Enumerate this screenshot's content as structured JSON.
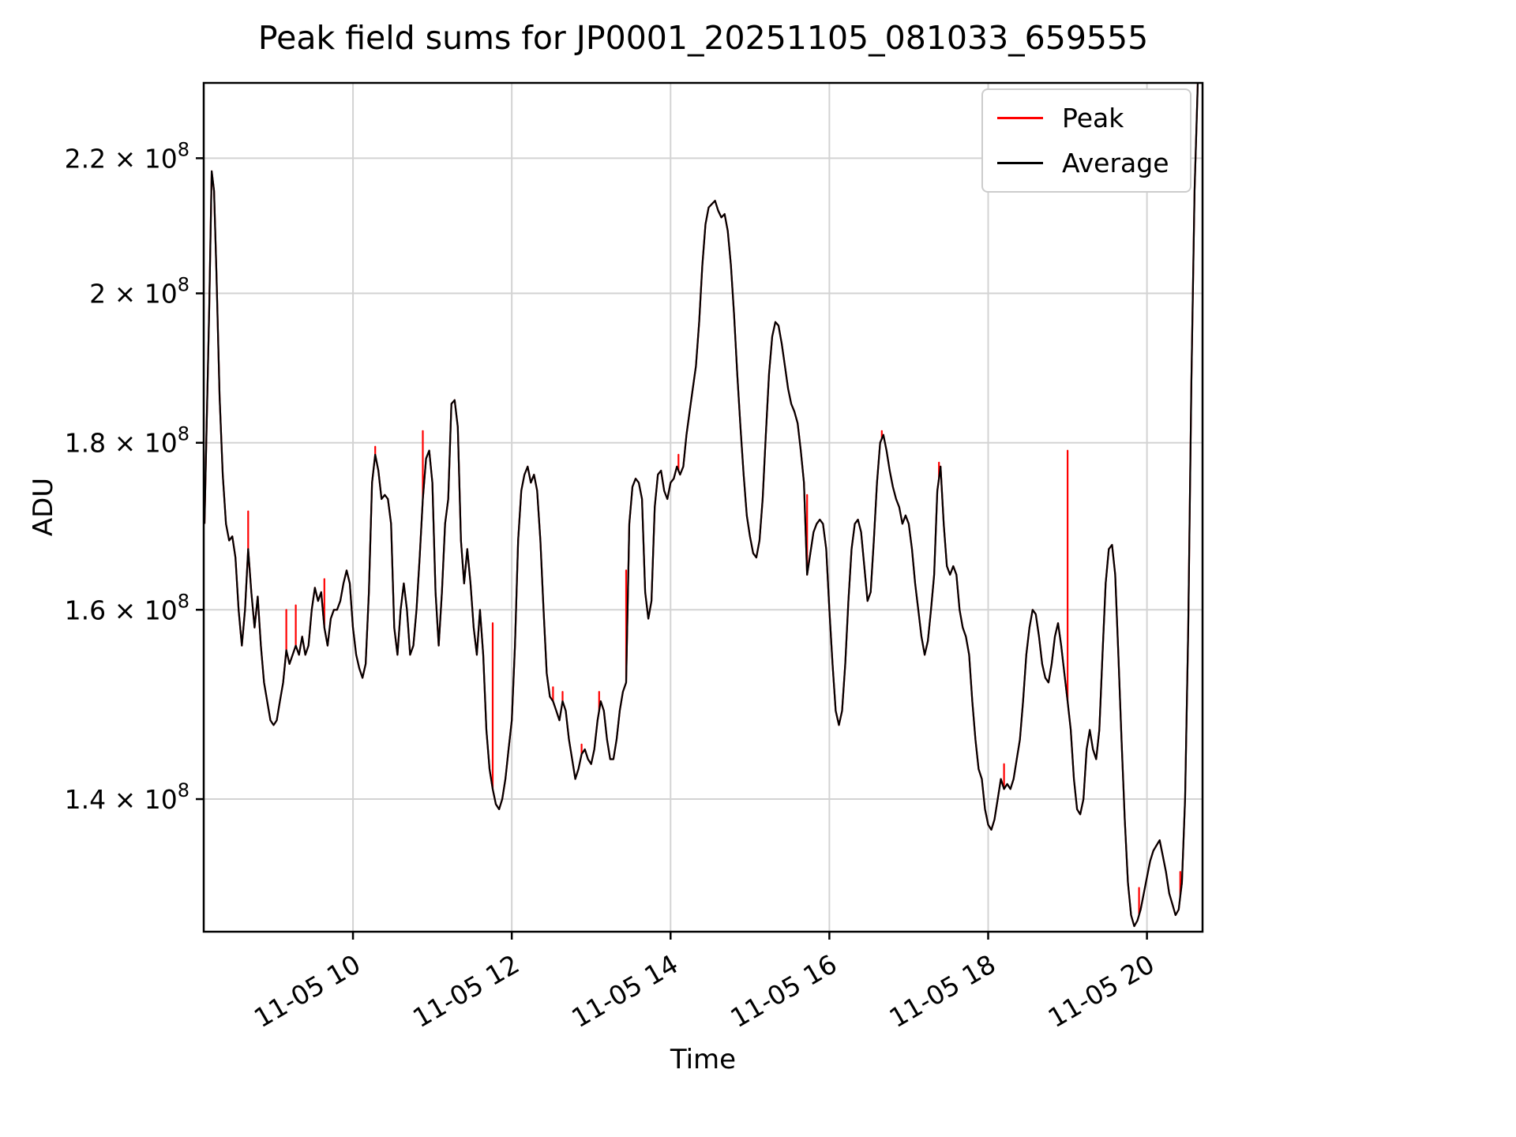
{
  "chart": {
    "title": "Peak field sums for JP0001_20251105_081033_659555",
    "xlabel": "Time",
    "ylabel": "ADU",
    "legend": [
      {
        "label": "Peak",
        "color": "#ff0000"
      },
      {
        "label": "Average",
        "color": "#000000"
      }
    ]
  },
  "chart_data": {
    "type": "line",
    "title": "Peak field sums for JP0001_20251105_081033_659555",
    "xlabel": "Time",
    "ylabel": "ADU",
    "yscale": "log",
    "grid": true,
    "grid_color": "#d3d3d3",
    "background": "#ffffff",
    "legend_position": "upper right",
    "x_unit_note": "hours of day on 2025-11-05",
    "y_values_unit": "ADU x 1e8",
    "xlim": [
      8.12,
      20.7
    ],
    "ylim": [
      1.275,
      2.32
    ],
    "x_ticks": [
      {
        "v": 10,
        "label": "11-05 10"
      },
      {
        "v": 12,
        "label": "11-05 12"
      },
      {
        "v": 14,
        "label": "11-05 14"
      },
      {
        "v": 16,
        "label": "11-05 16"
      },
      {
        "v": 18,
        "label": "11-05 18"
      },
      {
        "v": 20,
        "label": "11-05 20"
      }
    ],
    "y_ticks": [
      {
        "v": 1.4,
        "mantissa": "1.4"
      },
      {
        "v": 1.6,
        "mantissa": "1.6"
      },
      {
        "v": 1.8,
        "mantissa": "1.8"
      },
      {
        "v": 2.0,
        "mantissa": "2"
      },
      {
        "v": 2.2,
        "mantissa": "2.2"
      }
    ],
    "y_tick_suffix": " × 10",
    "y_tick_exponent": "8",
    "series": [
      {
        "name": "Peak",
        "color": "#ff0000",
        "derived_from": "Average plus spikes"
      },
      {
        "name": "Average",
        "color": "#000000"
      }
    ],
    "average_points": [
      [
        8.13,
        1.7
      ],
      [
        8.19,
        1.98
      ],
      [
        8.22,
        2.18
      ],
      [
        8.25,
        2.15
      ],
      [
        8.28,
        2.03
      ],
      [
        8.32,
        1.86
      ],
      [
        8.36,
        1.76
      ],
      [
        8.4,
        1.7
      ],
      [
        8.44,
        1.68
      ],
      [
        8.48,
        1.685
      ],
      [
        8.52,
        1.66
      ],
      [
        8.56,
        1.6
      ],
      [
        8.6,
        1.56
      ],
      [
        8.64,
        1.6
      ],
      [
        8.68,
        1.67
      ],
      [
        8.72,
        1.62
      ],
      [
        8.76,
        1.58
      ],
      [
        8.8,
        1.615
      ],
      [
        8.84,
        1.56
      ],
      [
        8.88,
        1.52
      ],
      [
        8.92,
        1.5
      ],
      [
        8.96,
        1.48
      ],
      [
        9.0,
        1.475
      ],
      [
        9.04,
        1.48
      ],
      [
        9.08,
        1.5
      ],
      [
        9.12,
        1.52
      ],
      [
        9.16,
        1.555
      ],
      [
        9.2,
        1.54
      ],
      [
        9.24,
        1.55
      ],
      [
        9.28,
        1.56
      ],
      [
        9.32,
        1.55
      ],
      [
        9.36,
        1.57
      ],
      [
        9.4,
        1.55
      ],
      [
        9.44,
        1.56
      ],
      [
        9.48,
        1.6
      ],
      [
        9.52,
        1.625
      ],
      [
        9.56,
        1.61
      ],
      [
        9.6,
        1.62
      ],
      [
        9.64,
        1.58
      ],
      [
        9.68,
        1.56
      ],
      [
        9.72,
        1.59
      ],
      [
        9.76,
        1.6
      ],
      [
        9.8,
        1.6
      ],
      [
        9.84,
        1.61
      ],
      [
        9.88,
        1.63
      ],
      [
        9.92,
        1.645
      ],
      [
        9.96,
        1.63
      ],
      [
        10.0,
        1.58
      ],
      [
        10.04,
        1.55
      ],
      [
        10.08,
        1.535
      ],
      [
        10.12,
        1.525
      ],
      [
        10.16,
        1.54
      ],
      [
        10.2,
        1.62
      ],
      [
        10.24,
        1.75
      ],
      [
        10.28,
        1.785
      ],
      [
        10.32,
        1.765
      ],
      [
        10.36,
        1.73
      ],
      [
        10.4,
        1.735
      ],
      [
        10.44,
        1.73
      ],
      [
        10.48,
        1.7
      ],
      [
        10.52,
        1.58
      ],
      [
        10.56,
        1.55
      ],
      [
        10.6,
        1.6
      ],
      [
        10.64,
        1.63
      ],
      [
        10.68,
        1.6
      ],
      [
        10.72,
        1.55
      ],
      [
        10.76,
        1.56
      ],
      [
        10.8,
        1.6
      ],
      [
        10.84,
        1.66
      ],
      [
        10.88,
        1.73
      ],
      [
        10.92,
        1.78
      ],
      [
        10.96,
        1.79
      ],
      [
        11.0,
        1.75
      ],
      [
        11.04,
        1.62
      ],
      [
        11.08,
        1.56
      ],
      [
        11.12,
        1.62
      ],
      [
        11.16,
        1.7
      ],
      [
        11.2,
        1.73
      ],
      [
        11.24,
        1.85
      ],
      [
        11.28,
        1.855
      ],
      [
        11.32,
        1.82
      ],
      [
        11.36,
        1.68
      ],
      [
        11.4,
        1.63
      ],
      [
        11.44,
        1.67
      ],
      [
        11.48,
        1.63
      ],
      [
        11.52,
        1.58
      ],
      [
        11.56,
        1.55
      ],
      [
        11.6,
        1.6
      ],
      [
        11.64,
        1.55
      ],
      [
        11.68,
        1.47
      ],
      [
        11.72,
        1.43
      ],
      [
        11.76,
        1.41
      ],
      [
        11.8,
        1.395
      ],
      [
        11.84,
        1.39
      ],
      [
        11.88,
        1.4
      ],
      [
        11.92,
        1.42
      ],
      [
        11.96,
        1.45
      ],
      [
        12.0,
        1.48
      ],
      [
        12.04,
        1.56
      ],
      [
        12.08,
        1.68
      ],
      [
        12.12,
        1.74
      ],
      [
        12.16,
        1.76
      ],
      [
        12.2,
        1.77
      ],
      [
        12.24,
        1.75
      ],
      [
        12.28,
        1.76
      ],
      [
        12.32,
        1.74
      ],
      [
        12.36,
        1.68
      ],
      [
        12.4,
        1.6
      ],
      [
        12.44,
        1.53
      ],
      [
        12.48,
        1.505
      ],
      [
        12.52,
        1.5
      ],
      [
        12.56,
        1.49
      ],
      [
        12.6,
        1.48
      ],
      [
        12.64,
        1.5
      ],
      [
        12.68,
        1.49
      ],
      [
        12.72,
        1.46
      ],
      [
        12.76,
        1.44
      ],
      [
        12.8,
        1.42
      ],
      [
        12.84,
        1.43
      ],
      [
        12.88,
        1.445
      ],
      [
        12.92,
        1.45
      ],
      [
        12.96,
        1.44
      ],
      [
        13.0,
        1.435
      ],
      [
        13.04,
        1.45
      ],
      [
        13.08,
        1.48
      ],
      [
        13.12,
        1.5
      ],
      [
        13.16,
        1.49
      ],
      [
        13.2,
        1.46
      ],
      [
        13.24,
        1.44
      ],
      [
        13.28,
        1.44
      ],
      [
        13.32,
        1.46
      ],
      [
        13.36,
        1.49
      ],
      [
        13.4,
        1.51
      ],
      [
        13.44,
        1.52
      ],
      [
        13.48,
        1.7
      ],
      [
        13.52,
        1.745
      ],
      [
        13.56,
        1.755
      ],
      [
        13.6,
        1.75
      ],
      [
        13.64,
        1.73
      ],
      [
        13.68,
        1.62
      ],
      [
        13.72,
        1.59
      ],
      [
        13.76,
        1.61
      ],
      [
        13.8,
        1.72
      ],
      [
        13.84,
        1.76
      ],
      [
        13.88,
        1.765
      ],
      [
        13.92,
        1.74
      ],
      [
        13.96,
        1.73
      ],
      [
        14.0,
        1.75
      ],
      [
        14.04,
        1.755
      ],
      [
        14.08,
        1.77
      ],
      [
        14.12,
        1.76
      ],
      [
        14.16,
        1.77
      ],
      [
        14.2,
        1.81
      ],
      [
        14.24,
        1.84
      ],
      [
        14.28,
        1.87
      ],
      [
        14.32,
        1.9
      ],
      [
        14.36,
        1.96
      ],
      [
        14.4,
        2.04
      ],
      [
        14.44,
        2.1
      ],
      [
        14.48,
        2.125
      ],
      [
        14.52,
        2.13
      ],
      [
        14.56,
        2.135
      ],
      [
        14.6,
        2.12
      ],
      [
        14.64,
        2.11
      ],
      [
        14.68,
        2.115
      ],
      [
        14.72,
        2.09
      ],
      [
        14.76,
        2.04
      ],
      [
        14.8,
        1.97
      ],
      [
        14.84,
        1.89
      ],
      [
        14.88,
        1.82
      ],
      [
        14.92,
        1.76
      ],
      [
        14.96,
        1.71
      ],
      [
        15.0,
        1.685
      ],
      [
        15.04,
        1.665
      ],
      [
        15.08,
        1.66
      ],
      [
        15.12,
        1.68
      ],
      [
        15.16,
        1.73
      ],
      [
        15.2,
        1.81
      ],
      [
        15.24,
        1.89
      ],
      [
        15.28,
        1.94
      ],
      [
        15.32,
        1.96
      ],
      [
        15.36,
        1.955
      ],
      [
        15.4,
        1.93
      ],
      [
        15.44,
        1.9
      ],
      [
        15.48,
        1.87
      ],
      [
        15.52,
        1.85
      ],
      [
        15.56,
        1.84
      ],
      [
        15.6,
        1.825
      ],
      [
        15.64,
        1.79
      ],
      [
        15.68,
        1.75
      ],
      [
        15.72,
        1.64
      ],
      [
        15.76,
        1.665
      ],
      [
        15.8,
        1.69
      ],
      [
        15.84,
        1.7
      ],
      [
        15.88,
        1.705
      ],
      [
        15.92,
        1.7
      ],
      [
        15.96,
        1.67
      ],
      [
        16.0,
        1.6
      ],
      [
        16.04,
        1.54
      ],
      [
        16.08,
        1.49
      ],
      [
        16.12,
        1.475
      ],
      [
        16.16,
        1.49
      ],
      [
        16.2,
        1.54
      ],
      [
        16.24,
        1.61
      ],
      [
        16.28,
        1.67
      ],
      [
        16.32,
        1.7
      ],
      [
        16.36,
        1.705
      ],
      [
        16.4,
        1.69
      ],
      [
        16.44,
        1.65
      ],
      [
        16.48,
        1.61
      ],
      [
        16.52,
        1.62
      ],
      [
        16.56,
        1.68
      ],
      [
        16.6,
        1.75
      ],
      [
        16.64,
        1.8
      ],
      [
        16.68,
        1.81
      ],
      [
        16.72,
        1.79
      ],
      [
        16.76,
        1.765
      ],
      [
        16.8,
        1.745
      ],
      [
        16.84,
        1.73
      ],
      [
        16.88,
        1.72
      ],
      [
        16.92,
        1.7
      ],
      [
        16.96,
        1.71
      ],
      [
        17.0,
        1.7
      ],
      [
        17.04,
        1.67
      ],
      [
        17.08,
        1.63
      ],
      [
        17.12,
        1.6
      ],
      [
        17.16,
        1.57
      ],
      [
        17.2,
        1.55
      ],
      [
        17.24,
        1.565
      ],
      [
        17.28,
        1.6
      ],
      [
        17.32,
        1.64
      ],
      [
        17.36,
        1.74
      ],
      [
        17.4,
        1.77
      ],
      [
        17.44,
        1.7
      ],
      [
        17.48,
        1.65
      ],
      [
        17.52,
        1.64
      ],
      [
        17.56,
        1.65
      ],
      [
        17.6,
        1.64
      ],
      [
        17.64,
        1.6
      ],
      [
        17.68,
        1.58
      ],
      [
        17.72,
        1.57
      ],
      [
        17.76,
        1.55
      ],
      [
        17.8,
        1.5
      ],
      [
        17.84,
        1.46
      ],
      [
        17.88,
        1.43
      ],
      [
        17.92,
        1.42
      ],
      [
        17.96,
        1.39
      ],
      [
        18.0,
        1.375
      ],
      [
        18.04,
        1.37
      ],
      [
        18.08,
        1.38
      ],
      [
        18.12,
        1.4
      ],
      [
        18.16,
        1.42
      ],
      [
        18.2,
        1.41
      ],
      [
        18.24,
        1.415
      ],
      [
        18.28,
        1.41
      ],
      [
        18.32,
        1.42
      ],
      [
        18.36,
        1.44
      ],
      [
        18.4,
        1.46
      ],
      [
        18.44,
        1.5
      ],
      [
        18.48,
        1.55
      ],
      [
        18.52,
        1.58
      ],
      [
        18.56,
        1.6
      ],
      [
        18.6,
        1.595
      ],
      [
        18.64,
        1.57
      ],
      [
        18.68,
        1.54
      ],
      [
        18.72,
        1.525
      ],
      [
        18.76,
        1.52
      ],
      [
        18.8,
        1.54
      ],
      [
        18.84,
        1.57
      ],
      [
        18.88,
        1.585
      ],
      [
        18.92,
        1.56
      ],
      [
        18.96,
        1.53
      ],
      [
        19.0,
        1.5
      ],
      [
        19.04,
        1.47
      ],
      [
        19.08,
        1.42
      ],
      [
        19.12,
        1.39
      ],
      [
        19.16,
        1.385
      ],
      [
        19.2,
        1.4
      ],
      [
        19.24,
        1.45
      ],
      [
        19.28,
        1.47
      ],
      [
        19.32,
        1.45
      ],
      [
        19.36,
        1.44
      ],
      [
        19.4,
        1.47
      ],
      [
        19.44,
        1.55
      ],
      [
        19.48,
        1.63
      ],
      [
        19.52,
        1.67
      ],
      [
        19.56,
        1.675
      ],
      [
        19.6,
        1.64
      ],
      [
        19.64,
        1.55
      ],
      [
        19.68,
        1.46
      ],
      [
        19.72,
        1.38
      ],
      [
        19.76,
        1.32
      ],
      [
        19.8,
        1.29
      ],
      [
        19.84,
        1.28
      ],
      [
        19.88,
        1.285
      ],
      [
        19.92,
        1.295
      ],
      [
        19.96,
        1.31
      ],
      [
        20.0,
        1.325
      ],
      [
        20.04,
        1.34
      ],
      [
        20.08,
        1.35
      ],
      [
        20.12,
        1.355
      ],
      [
        20.16,
        1.36
      ],
      [
        20.2,
        1.345
      ],
      [
        20.24,
        1.33
      ],
      [
        20.28,
        1.31
      ],
      [
        20.32,
        1.3
      ],
      [
        20.36,
        1.29
      ],
      [
        20.4,
        1.295
      ],
      [
        20.44,
        1.32
      ],
      [
        20.48,
        1.4
      ],
      [
        20.52,
        1.58
      ],
      [
        20.56,
        1.88
      ],
      [
        20.6,
        2.15
      ],
      [
        20.64,
        2.32
      ],
      [
        20.66,
        2.36
      ]
    ],
    "peak_spikes": [
      [
        8.68,
        1.715
      ],
      [
        9.16,
        1.6
      ],
      [
        9.28,
        1.605
      ],
      [
        9.64,
        1.635
      ],
      [
        10.28,
        1.795
      ],
      [
        10.88,
        1.815
      ],
      [
        11.76,
        1.585
      ],
      [
        12.52,
        1.515
      ],
      [
        12.64,
        1.51
      ],
      [
        12.88,
        1.455
      ],
      [
        13.1,
        1.51
      ],
      [
        13.44,
        1.645
      ],
      [
        14.1,
        1.785
      ],
      [
        15.72,
        1.735
      ],
      [
        16.66,
        1.815
      ],
      [
        17.38,
        1.775
      ],
      [
        18.2,
        1.435
      ],
      [
        19.0,
        1.79
      ],
      [
        19.9,
        1.315
      ],
      [
        20.42,
        1.33
      ]
    ]
  }
}
